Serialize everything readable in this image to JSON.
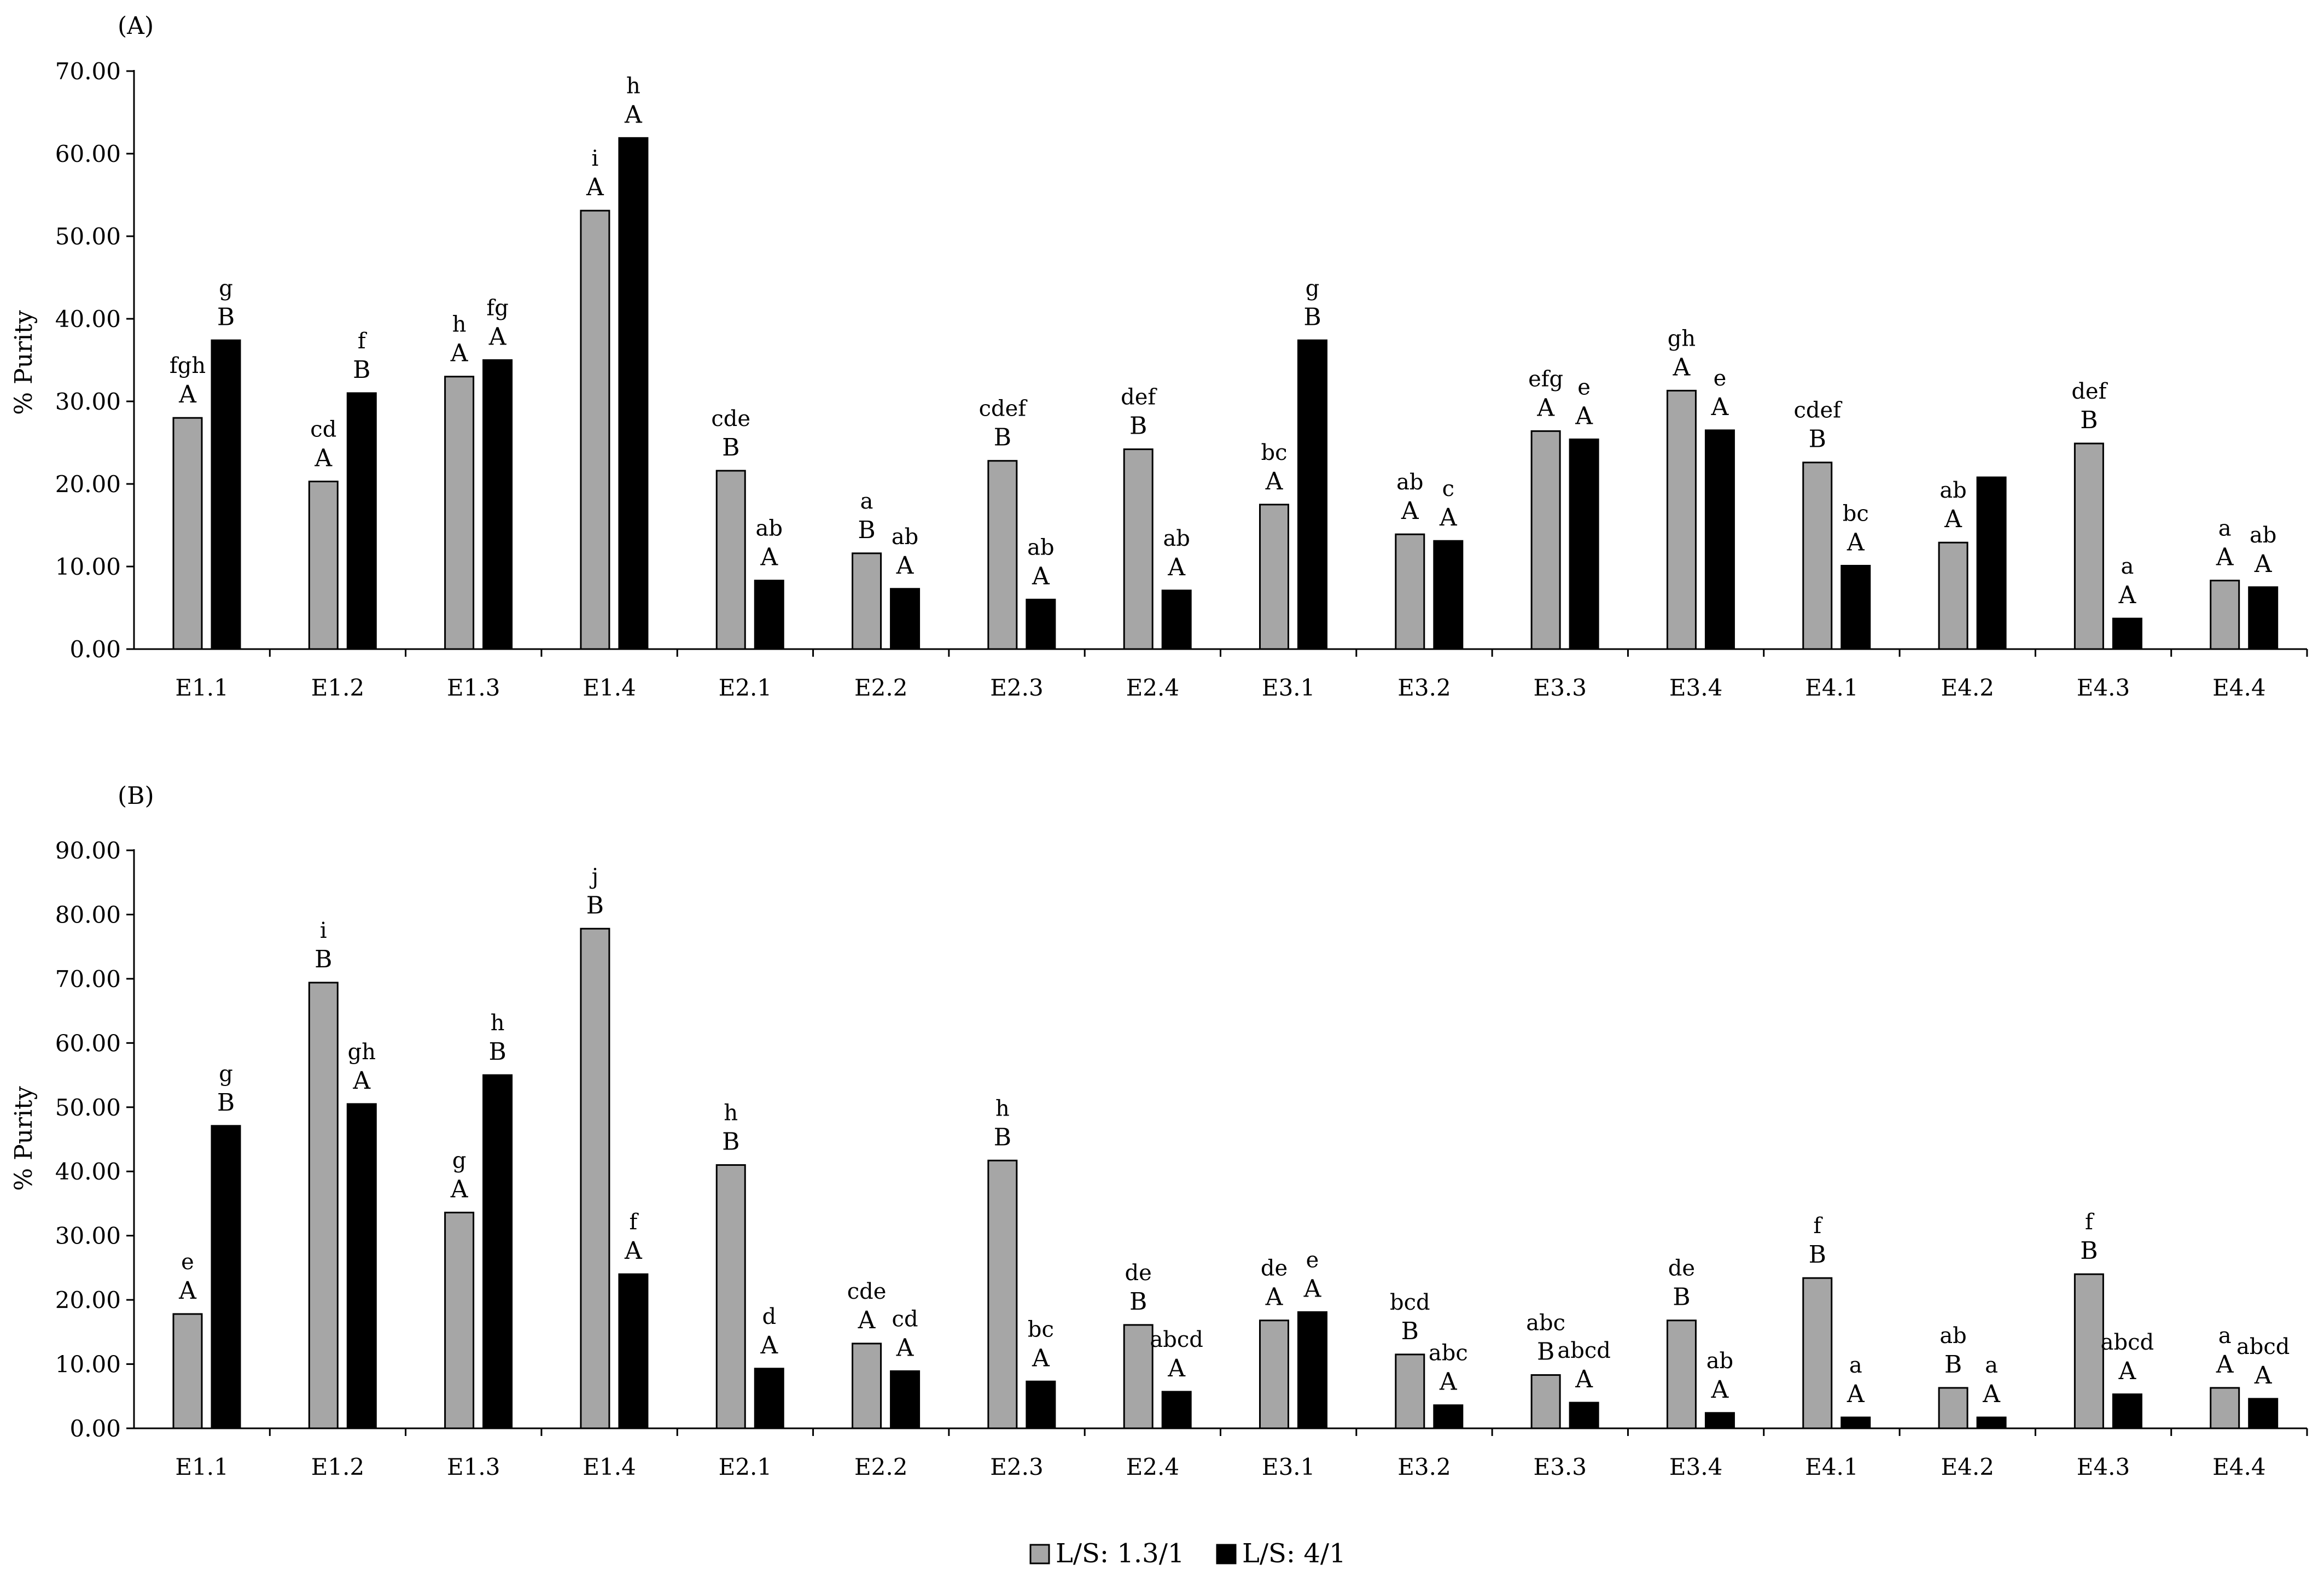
{
  "chart_data": [
    {
      "panel_label": "(A)",
      "type": "bar",
      "ylabel": "% Purity",
      "ylim": [
        0,
        70
      ],
      "yticks": [
        "0.00",
        "10.00",
        "20.00",
        "30.00",
        "40.00",
        "50.00",
        "60.00",
        "70.00"
      ],
      "categories": [
        "E1.1",
        "E1.2",
        "E1.3",
        "E1.4",
        "E2.1",
        "E2.2",
        "E2.3",
        "E2.4",
        "E3.1",
        "E3.2",
        "E3.3",
        "E3.4",
        "E4.1",
        "E4.2",
        "E4.3",
        "E4.4"
      ],
      "series": [
        {
          "name": "L/S: 1.3/1",
          "values": [
            28.0,
            20.3,
            33.0,
            53.1,
            21.6,
            11.6,
            22.8,
            24.2,
            17.5,
            13.9,
            26.4,
            31.3,
            22.6,
            12.9,
            24.9,
            8.3
          ],
          "labels": [
            [
              "fgh",
              "A"
            ],
            [
              "cd",
              "A"
            ],
            [
              "h",
              "A"
            ],
            [
              "i",
              "A"
            ],
            [
              "cde",
              "B"
            ],
            [
              "a",
              "B"
            ],
            [
              "cdef",
              "B"
            ],
            [
              "def",
              "B"
            ],
            [
              "bc",
              "A"
            ],
            [
              "ab",
              "A"
            ],
            [
              "efg",
              "A"
            ],
            [
              "gh",
              "A"
            ],
            [
              "cdef",
              "B"
            ],
            [
              "ab",
              "A"
            ],
            [
              "def",
              "B"
            ],
            [
              "a",
              "A"
            ]
          ]
        },
        {
          "name": "L/S: 4/1",
          "values": [
            37.4,
            31.0,
            35.0,
            61.9,
            8.3,
            7.3,
            6.0,
            7.1,
            37.4,
            13.1,
            25.4,
            26.5,
            10.1,
            20.8,
            3.7,
            7.5
          ],
          "labels": [
            [
              "g",
              "B"
            ],
            [
              "f",
              "B"
            ],
            [
              "fg",
              "A"
            ],
            [
              "h",
              "A"
            ],
            [
              "ab",
              "A"
            ],
            [
              "ab",
              "A"
            ],
            [
              "ab",
              "A"
            ],
            [
              "ab",
              "A"
            ],
            [
              "g",
              "B"
            ],
            [
              "c",
              "A"
            ],
            [
              "e",
              "A"
            ],
            [
              "e",
              "A"
            ],
            [
              "bc",
              "A"
            ],
            [
              "",
              ""
            ],
            [
              "a",
              "A"
            ],
            [
              "ab",
              "A"
            ]
          ]
        }
      ]
    },
    {
      "panel_label": "(B)",
      "type": "bar",
      "ylabel": "% Purity",
      "ylim": [
        0,
        90
      ],
      "yticks": [
        "0.00",
        "10.00",
        "20.00",
        "30.00",
        "40.00",
        "50.00",
        "60.00",
        "70.00",
        "80.00",
        "90.00"
      ],
      "categories": [
        "E1.1",
        "E1.2",
        "E1.3",
        "E1.4",
        "E2.1",
        "E2.2",
        "E2.3",
        "E2.4",
        "E3.1",
        "E3.2",
        "E3.3",
        "E3.4",
        "E4.1",
        "E4.2",
        "E4.3",
        "E4.4"
      ],
      "series": [
        {
          "name": "L/S: 1.3/1",
          "values": [
            17.8,
            69.4,
            33.6,
            77.8,
            41.0,
            13.2,
            41.7,
            16.1,
            16.8,
            11.5,
            8.3,
            16.8,
            23.4,
            6.3,
            24.0,
            6.3
          ],
          "labels": [
            [
              "e",
              "A"
            ],
            [
              "i",
              "B"
            ],
            [
              "g",
              "A"
            ],
            [
              "j",
              "B"
            ],
            [
              "h",
              "B"
            ],
            [
              "cde",
              "A"
            ],
            [
              "h",
              "B"
            ],
            [
              "de",
              "B"
            ],
            [
              "de",
              "A"
            ],
            [
              "bcd",
              "B"
            ],
            [
              "abc",
              "B"
            ],
            [
              "de",
              "B"
            ],
            [
              "f",
              "B"
            ],
            [
              "ab",
              "B"
            ],
            [
              "f",
              "B"
            ],
            [
              "a",
              "A"
            ]
          ]
        },
        {
          "name": "L/S: 4/1",
          "values": [
            47.1,
            50.5,
            55.0,
            24.0,
            9.3,
            8.9,
            7.3,
            5.7,
            18.1,
            3.6,
            4.0,
            2.4,
            1.7,
            1.7,
            5.3,
            4.6
          ],
          "labels": [
            [
              "g",
              "B"
            ],
            [
              "gh",
              "A"
            ],
            [
              "h",
              "B"
            ],
            [
              "f",
              "A"
            ],
            [
              "d",
              "A"
            ],
            [
              "cd",
              "A"
            ],
            [
              "bc",
              "A"
            ],
            [
              "abcd",
              "A"
            ],
            [
              "e",
              "A"
            ],
            [
              "abc",
              "A"
            ],
            [
              "abcd",
              "A"
            ],
            [
              "ab",
              "A"
            ],
            [
              "a",
              "A"
            ],
            [
              "a",
              "A"
            ],
            [
              "abcd",
              "A"
            ],
            [
              "abcd",
              "A"
            ]
          ]
        }
      ]
    }
  ],
  "legend": {
    "position": "bottom-center",
    "items": [
      {
        "label": "L/S: 1.3/1",
        "color": "#a6a6a6"
      },
      {
        "label": "L/S: 4/1",
        "color": "#000000"
      }
    ]
  },
  "colors": {
    "series1": "#a6a6a6",
    "series2": "#000000"
  }
}
